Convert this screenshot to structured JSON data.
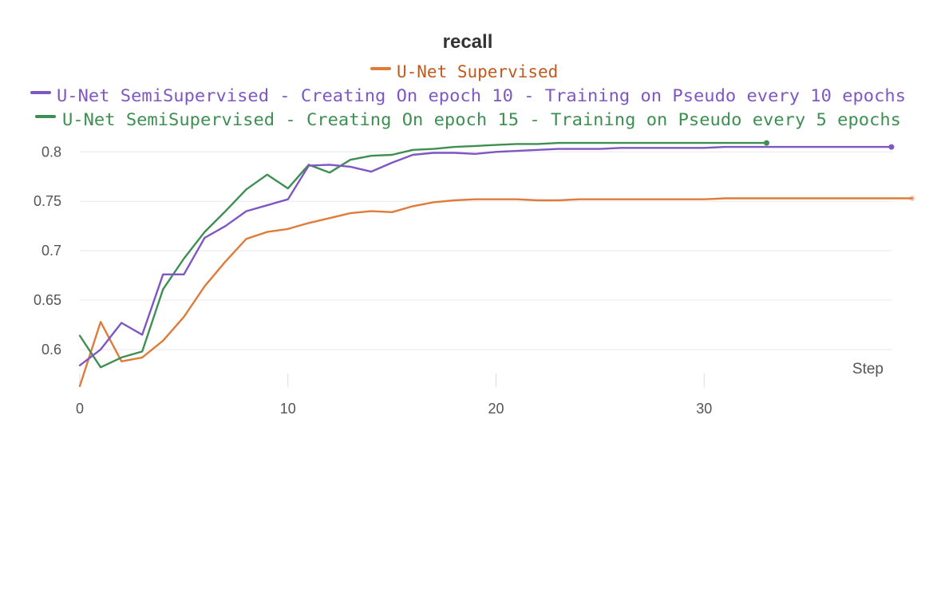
{
  "chart_data": {
    "type": "line",
    "title": "recall",
    "xlabel": "Step",
    "ylabel": "",
    "xlim": [
      0,
      40
    ],
    "ylim": [
      0.562,
      0.818
    ],
    "xticks": [
      0,
      10,
      20,
      30
    ],
    "yticks": [
      0.6,
      0.65,
      0.7,
      0.75,
      0.8
    ],
    "ytick_labels": [
      "0.6",
      "0.65",
      "0.7",
      "0.75",
      "0.8"
    ],
    "grid": true,
    "legend_position": "top-center",
    "series": [
      {
        "name": "U-Net Supervised",
        "color": "#e07b39",
        "text_color": "#c05a1d",
        "x": [
          0,
          1,
          2,
          3,
          4,
          5,
          6,
          7,
          8,
          9,
          10,
          11,
          12,
          13,
          14,
          15,
          16,
          17,
          18,
          19,
          20,
          21,
          22,
          23,
          24,
          25,
          26,
          27,
          28,
          29,
          30,
          31,
          32,
          33,
          34,
          35,
          36,
          37,
          38,
          39,
          40
        ],
        "y": [
          0.563,
          0.628,
          0.588,
          0.592,
          0.609,
          0.633,
          0.664,
          0.689,
          0.712,
          0.719,
          0.722,
          0.728,
          0.733,
          0.738,
          0.74,
          0.739,
          0.745,
          0.749,
          0.751,
          0.752,
          0.752,
          0.752,
          0.751,
          0.751,
          0.752,
          0.752,
          0.752,
          0.752,
          0.752,
          0.752,
          0.752,
          0.753,
          0.753,
          0.753,
          0.753,
          0.753,
          0.753,
          0.753,
          0.753,
          0.753,
          0.753
        ]
      },
      {
        "name": "U-Net SemiSupervised - Creating On epoch 10 - Training on Pseudo every 10 epochs",
        "color": "#7e57c2",
        "text_color": "#7e57c2",
        "x": [
          0,
          1,
          2,
          3,
          4,
          5,
          6,
          7,
          8,
          9,
          10,
          11,
          12,
          13,
          14,
          15,
          16,
          17,
          18,
          19,
          20,
          21,
          22,
          23,
          24,
          25,
          26,
          27,
          28,
          29,
          30,
          31,
          32,
          33,
          34,
          35,
          36,
          37,
          38,
          39
        ],
        "y": [
          0.584,
          0.6,
          0.627,
          0.615,
          0.676,
          0.676,
          0.713,
          0.725,
          0.74,
          0.746,
          0.752,
          0.786,
          0.787,
          0.785,
          0.78,
          0.789,
          0.797,
          0.799,
          0.799,
          0.798,
          0.8,
          0.801,
          0.802,
          0.803,
          0.803,
          0.803,
          0.804,
          0.804,
          0.804,
          0.804,
          0.804,
          0.805,
          0.805,
          0.805,
          0.805,
          0.805,
          0.805,
          0.805,
          0.805,
          0.805
        ]
      },
      {
        "name": "U-Net SemiSupervised - Creating On epoch 15 - Training on Pseudo every 5 epochs",
        "color": "#3d8f52",
        "text_color": "#3d8f52",
        "x": [
          0,
          1,
          2,
          3,
          4,
          5,
          6,
          7,
          8,
          9,
          10,
          11,
          12,
          13,
          14,
          15,
          16,
          17,
          18,
          19,
          20,
          21,
          22,
          23,
          24,
          25,
          26,
          27,
          28,
          29,
          30,
          31,
          32,
          33
        ],
        "y": [
          0.614,
          0.582,
          0.592,
          0.598,
          0.661,
          0.692,
          0.719,
          0.74,
          0.762,
          0.777,
          0.763,
          0.787,
          0.779,
          0.792,
          0.796,
          0.797,
          0.802,
          0.803,
          0.805,
          0.806,
          0.807,
          0.808,
          0.808,
          0.809,
          0.809,
          0.809,
          0.809,
          0.809,
          0.809,
          0.809,
          0.809,
          0.809,
          0.809,
          0.809
        ]
      }
    ]
  }
}
